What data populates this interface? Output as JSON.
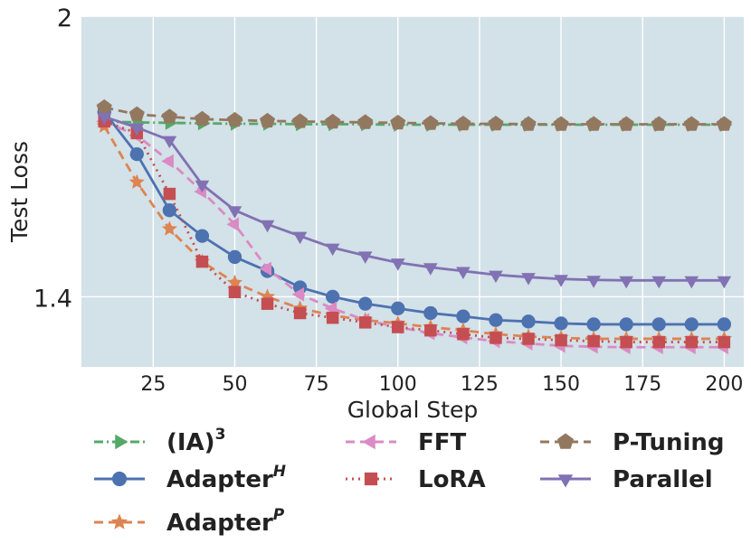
{
  "chart_data": {
    "type": "line",
    "xlabel": "Global Step",
    "ylabel": "Test Loss",
    "xlim": [
      3,
      206
    ],
    "ylim": [
      1.25,
      2.0
    ],
    "xticks": [
      25,
      50,
      75,
      100,
      125,
      150,
      175,
      200
    ],
    "xtick_labels": [
      "25",
      "50",
      "75",
      "100",
      "125",
      "150",
      "175",
      "200"
    ],
    "yticks": [
      1.4,
      2.0
    ],
    "ytick_labels": [
      "1.4",
      "2"
    ],
    "grid": true,
    "x": [
      10,
      20,
      30,
      40,
      50,
      60,
      70,
      80,
      90,
      100,
      110,
      120,
      130,
      140,
      150,
      160,
      170,
      180,
      190,
      200
    ],
    "series": [
      {
        "name": "(IA)",
        "sup": "3",
        "color": "#55a868",
        "dash": "dashdot",
        "marker": "triangle-right",
        "values": [
          1.775,
          1.773,
          1.772,
          1.771,
          1.77,
          1.77,
          1.769,
          1.769,
          1.769,
          1.768,
          1.768,
          1.768,
          1.768,
          1.768,
          1.768,
          1.768,
          1.768,
          1.768,
          1.768,
          1.768
        ]
      },
      {
        "name": "Adapter",
        "sup": "H",
        "color": "#4c72b0",
        "dash": "solid",
        "marker": "circle",
        "values": [
          1.795,
          1.705,
          1.585,
          1.53,
          1.485,
          1.455,
          1.42,
          1.4,
          1.385,
          1.375,
          1.365,
          1.358,
          1.35,
          1.347,
          1.343,
          1.341,
          1.341,
          1.341,
          1.341,
          1.341
        ]
      },
      {
        "name": "Adapter",
        "sup": "P",
        "color": "#dd8452",
        "dash": "dashed",
        "marker": "star",
        "values": [
          1.765,
          1.645,
          1.545,
          1.475,
          1.43,
          1.4,
          1.375,
          1.36,
          1.35,
          1.343,
          1.335,
          1.328,
          1.32,
          1.315,
          1.312,
          1.31,
          1.31,
          1.31,
          1.31,
          1.31
        ]
      },
      {
        "name": "FFT",
        "sup": "",
        "color": "#da8bc3",
        "dash": "dashed",
        "marker": "triangle-left",
        "values": [
          1.775,
          1.745,
          1.69,
          1.625,
          1.555,
          1.46,
          1.405,
          1.375,
          1.35,
          1.335,
          1.322,
          1.313,
          1.305,
          1.3,
          1.295,
          1.293,
          1.292,
          1.292,
          1.292,
          1.292
        ]
      },
      {
        "name": "LoRA",
        "sup": "",
        "color": "#c44e52",
        "dash": "dotted",
        "marker": "square",
        "values": [
          1.775,
          1.75,
          1.62,
          1.475,
          1.41,
          1.385,
          1.365,
          1.355,
          1.345,
          1.335,
          1.328,
          1.32,
          1.312,
          1.31,
          1.307,
          1.305,
          1.303,
          1.303,
          1.303,
          1.303
        ]
      },
      {
        "name": "P-Tuning",
        "sup": "",
        "color": "#937860",
        "dash": "dashed",
        "marker": "pentagon",
        "values": [
          1.805,
          1.79,
          1.785,
          1.78,
          1.778,
          1.776,
          1.775,
          1.774,
          1.773,
          1.772,
          1.771,
          1.77,
          1.77,
          1.769,
          1.769,
          1.769,
          1.769,
          1.769,
          1.769,
          1.769
        ]
      },
      {
        "name": "Parallel",
        "sup": "",
        "color": "#8172b3",
        "dash": "solid",
        "marker": "triangle-down",
        "values": [
          1.785,
          1.762,
          1.735,
          1.64,
          1.585,
          1.555,
          1.53,
          1.505,
          1.488,
          1.473,
          1.463,
          1.455,
          1.447,
          1.442,
          1.438,
          1.436,
          1.435,
          1.435,
          1.435,
          1.435
        ]
      }
    ]
  }
}
